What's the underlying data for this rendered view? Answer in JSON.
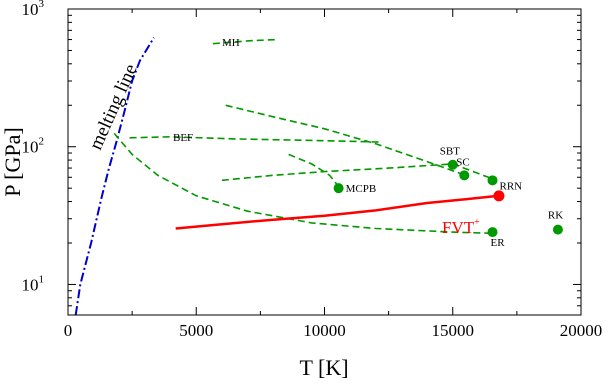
{
  "chart_data": {
    "type": "line",
    "xlabel": "T [K]",
    "ylabel": "P [GPa]",
    "xlim": [
      0,
      20000
    ],
    "ylim": [
      6,
      1000
    ],
    "yscale": "log",
    "xticks": [
      {
        "value": 0,
        "label": "0"
      },
      {
        "value": 5000,
        "label": "5000"
      },
      {
        "value": 10000,
        "label": "10000"
      },
      {
        "value": 15000,
        "label": "15000"
      },
      {
        "value": 20000,
        "label": "20000"
      }
    ],
    "yticks": [
      {
        "value": 10,
        "base": "10",
        "exp": "1"
      },
      {
        "value": 100,
        "base": "10",
        "exp": "2"
      },
      {
        "value": 1000,
        "base": "10",
        "exp": "3"
      }
    ],
    "grid": false,
    "colors": {
      "melting": "#0000cc",
      "dashed": "#009900",
      "fvt": "#ff0000",
      "points": "#009900"
    },
    "melting_line": {
      "label": "melting line",
      "points": [
        [
          300,
          6
        ],
        [
          480,
          10
        ],
        [
          900,
          20
        ],
        [
          1300,
          42
        ],
        [
          1600,
          70
        ],
        [
          1900,
          110
        ],
        [
          2200,
          180
        ],
        [
          2500,
          300
        ],
        [
          2800,
          420
        ],
        [
          3350,
          620
        ]
      ]
    },
    "dashed_curves": [
      {
        "label": "MH",
        "points": [
          [
            5650,
            560
          ],
          [
            6400,
            575
          ],
          [
            7200,
            590
          ],
          [
            8100,
            600
          ]
        ]
      },
      {
        "label": "BEF",
        "points": [
          [
            2400,
            116
          ],
          [
            4000,
            118
          ],
          [
            6500,
            114
          ],
          [
            8500,
            112
          ],
          [
            10500,
            110
          ],
          [
            12200,
            108
          ]
        ]
      },
      {
        "label": "",
        "points": [
          [
            1800,
            125
          ],
          [
            2500,
            88
          ],
          [
            3500,
            62
          ],
          [
            5000,
            44
          ],
          [
            7000,
            34
          ],
          [
            9500,
            28
          ],
          [
            12000,
            25.5
          ],
          [
            15000,
            24
          ],
          [
            16500,
            23.5
          ]
        ]
      },
      {
        "label": "",
        "points": [
          [
            6150,
            200
          ],
          [
            8000,
            165
          ],
          [
            10000,
            135
          ],
          [
            12000,
            105
          ],
          [
            14000,
            78
          ],
          [
            15500,
            62
          ]
        ]
      },
      {
        "label": "",
        "points": [
          [
            6000,
            57
          ],
          [
            8000,
            62
          ],
          [
            10000,
            66
          ],
          [
            12500,
            70
          ],
          [
            15000,
            75
          ],
          [
            16700,
            57
          ]
        ]
      },
      {
        "label": "",
        "points": [
          [
            8600,
            88
          ],
          [
            9500,
            75
          ],
          [
            10200,
            62
          ],
          [
            10600,
            50
          ]
        ]
      }
    ],
    "fvt_line": {
      "label": "FVT",
      "label_sup": "+",
      "points": [
        [
          4200,
          25.5
        ],
        [
          6000,
          27.4
        ],
        [
          8000,
          29.5
        ],
        [
          10000,
          31.5
        ],
        [
          12000,
          34.5
        ],
        [
          14000,
          39
        ],
        [
          15500,
          41.5
        ],
        [
          16800,
          44
        ]
      ]
    },
    "points": [
      {
        "label": "SBT",
        "x": 15000,
        "y": 74
      },
      {
        "label": "SC",
        "x": 15450,
        "y": 62
      },
      {
        "label": "RRN",
        "x": 16550,
        "y": 57
      },
      {
        "label": "MCPB",
        "x": 10550,
        "y": 50
      },
      {
        "label": "ER",
        "x": 16550,
        "y": 24
      },
      {
        "label": "RK",
        "x": 19100,
        "y": 25
      },
      {
        "label": "FVT",
        "x": 16800,
        "y": 44,
        "color": "#ff0000"
      }
    ]
  }
}
